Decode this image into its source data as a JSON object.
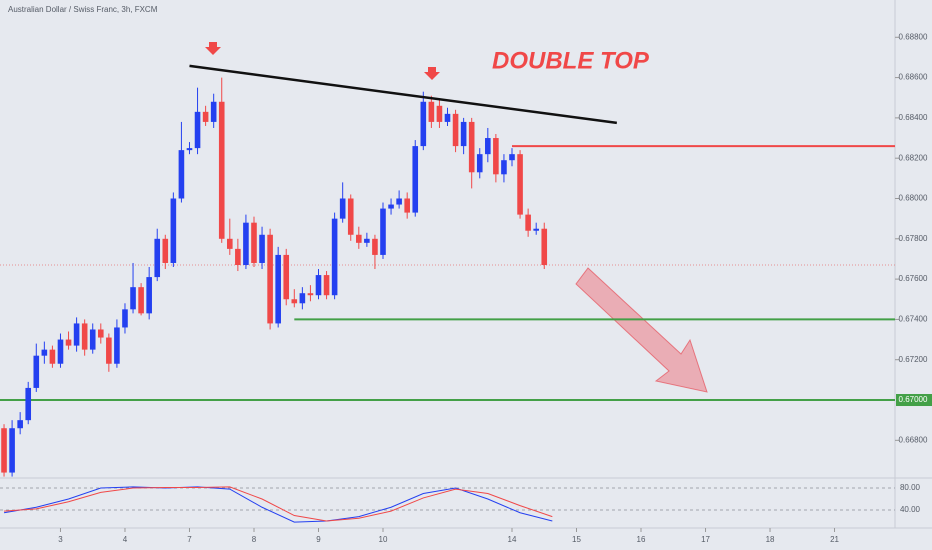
{
  "chart_data": [
    {
      "type": "candlestick",
      "subtitle": "Australian Dollar / Swiss Franc, 3h, FXCM",
      "annotation": "DOUBLE TOP",
      "up_color": "#2440f0",
      "down_color": "#f04848",
      "grid": false,
      "x": [
        0,
        1,
        2,
        3,
        4,
        5,
        6,
        7,
        8,
        9,
        10,
        11,
        12,
        13,
        14,
        15,
        16,
        17,
        18,
        19,
        20,
        21,
        22,
        23,
        24,
        25,
        26,
        27,
        28,
        29,
        30,
        31,
        32,
        33,
        34,
        35,
        36,
        37,
        38,
        39,
        40,
        41,
        42,
        43,
        44,
        45,
        46,
        47,
        48,
        49,
        50,
        51,
        52,
        53,
        54,
        55,
        56,
        57,
        58,
        59,
        60,
        61,
        62,
        63,
        64,
        65,
        66,
        67
      ],
      "open": [
        0.6686,
        0.6664,
        0.6686,
        0.669,
        0.6706,
        0.6722,
        0.6725,
        0.6718,
        0.673,
        0.6727,
        0.6738,
        0.6725,
        0.6735,
        0.6731,
        0.6718,
        0.6736,
        0.6745,
        0.6756,
        0.6743,
        0.6761,
        0.678,
        0.6768,
        0.68,
        0.6824,
        0.6825,
        0.6843,
        0.6838,
        0.6848,
        0.678,
        0.6775,
        0.6767,
        0.6788,
        0.6768,
        0.6782,
        0.6738,
        0.6772,
        0.675,
        0.6748,
        0.6753,
        0.6752,
        0.6762,
        0.6752,
        0.679,
        0.68,
        0.6782,
        0.6778,
        0.678,
        0.6772,
        0.6795,
        0.6797,
        0.68,
        0.6793,
        0.6826,
        0.6848,
        0.6846,
        0.6838,
        0.6842,
        0.6826,
        0.6838,
        0.6813,
        0.6822,
        0.683,
        0.6812,
        0.6819,
        0.6822,
        0.6792,
        0.6784,
        0.6785
      ],
      "high": [
        0.6688,
        0.669,
        0.6694,
        0.6709,
        0.6728,
        0.6729,
        0.6727,
        0.6733,
        0.6734,
        0.6741,
        0.674,
        0.6738,
        0.6738,
        0.6733,
        0.674,
        0.6748,
        0.6768,
        0.6758,
        0.6766,
        0.6785,
        0.6782,
        0.6803,
        0.6838,
        0.6828,
        0.6855,
        0.6846,
        0.6852,
        0.686,
        0.679,
        0.678,
        0.6792,
        0.6791,
        0.6786,
        0.6785,
        0.6776,
        0.6775,
        0.6755,
        0.6756,
        0.6757,
        0.6765,
        0.6764,
        0.6793,
        0.6808,
        0.6802,
        0.6786,
        0.6783,
        0.6782,
        0.6798,
        0.68,
        0.6804,
        0.6803,
        0.6829,
        0.6853,
        0.6851,
        0.6849,
        0.6845,
        0.6844,
        0.684,
        0.684,
        0.6825,
        0.6835,
        0.6832,
        0.6822,
        0.6825,
        0.6824,
        0.6795,
        0.6788,
        0.6788
      ],
      "low": [
        0.6662,
        0.6662,
        0.6683,
        0.6688,
        0.6704,
        0.6718,
        0.6716,
        0.6716,
        0.6725,
        0.6724,
        0.6722,
        0.6723,
        0.6728,
        0.6714,
        0.6716,
        0.6733,
        0.6743,
        0.6742,
        0.674,
        0.6759,
        0.6765,
        0.6766,
        0.6798,
        0.6822,
        0.6822,
        0.6836,
        0.6835,
        0.6778,
        0.6772,
        0.6764,
        0.6765,
        0.6766,
        0.6765,
        0.6735,
        0.6736,
        0.6747,
        0.6746,
        0.6745,
        0.6749,
        0.675,
        0.675,
        0.675,
        0.6788,
        0.6779,
        0.6775,
        0.6776,
        0.6765,
        0.677,
        0.6792,
        0.6795,
        0.679,
        0.6791,
        0.6824,
        0.6835,
        0.6835,
        0.6836,
        0.6823,
        0.6822,
        0.6805,
        0.681,
        0.6818,
        0.6808,
        0.6808,
        0.6816,
        0.679,
        0.6781,
        0.6782,
        0.6765
      ],
      "close": [
        0.6664,
        0.6686,
        0.669,
        0.6706,
        0.6722,
        0.6725,
        0.6718,
        0.673,
        0.6727,
        0.6738,
        0.6725,
        0.6735,
        0.6731,
        0.6718,
        0.6736,
        0.6745,
        0.6756,
        0.6743,
        0.6761,
        0.678,
        0.6768,
        0.68,
        0.6824,
        0.6825,
        0.6843,
        0.6838,
        0.6848,
        0.678,
        0.6775,
        0.6767,
        0.6788,
        0.6768,
        0.6782,
        0.6738,
        0.6772,
        0.675,
        0.6748,
        0.6753,
        0.6752,
        0.6762,
        0.6752,
        0.679,
        0.68,
        0.6782,
        0.6778,
        0.678,
        0.6772,
        0.6795,
        0.6797,
        0.68,
        0.6793,
        0.6826,
        0.6848,
        0.6838,
        0.6838,
        0.6842,
        0.6826,
        0.6838,
        0.6813,
        0.6822,
        0.683,
        0.6812,
        0.6819,
        0.6822,
        0.6792,
        0.6784,
        0.6785,
        0.6767
      ],
      "xlim": [
        -0.5,
        110.5
      ],
      "xticks": [
        {
          "value": 7,
          "label": "3"
        },
        {
          "value": 15,
          "label": "4"
        },
        {
          "value": 23,
          "label": "7"
        },
        {
          "value": 31,
          "label": "8"
        },
        {
          "value": 39,
          "label": "9"
        },
        {
          "value": 47,
          "label": "10"
        },
        {
          "value": 63,
          "label": "14"
        },
        {
          "value": 71,
          "label": "15"
        },
        {
          "value": 79,
          "label": "16"
        },
        {
          "value": 87,
          "label": "17"
        },
        {
          "value": 95,
          "label": "18"
        },
        {
          "value": 103,
          "label": "21"
        }
      ],
      "ylim": [
        0.66613,
        0.68985
      ],
      "yticks": [
        {
          "value": 0.688,
          "label": "0.68800"
        },
        {
          "value": 0.686,
          "label": "0.68600"
        },
        {
          "value": 0.684,
          "label": "0.68400"
        },
        {
          "value": 0.682,
          "label": "0.68200"
        },
        {
          "value": 0.68,
          "label": "0.68000"
        },
        {
          "value": 0.678,
          "label": "0.67800"
        },
        {
          "value": 0.676,
          "label": "0.67600"
        },
        {
          "value": 0.674,
          "label": "0.67400"
        },
        {
          "value": 0.672,
          "label": "0.67200"
        },
        {
          "value": 0.668,
          "label": "0.66800"
        }
      ],
      "hlines": [
        {
          "value": 0.6826,
          "x_start": 63,
          "color": "#f04848"
        },
        {
          "value": 0.674,
          "x_start": 36,
          "color": "#43a047"
        },
        {
          "value": 0.67,
          "x_start": -0.5,
          "color": "#43a047",
          "label": "0.67000"
        }
      ],
      "trendline": {
        "x": [
          23,
          76
        ],
        "y": [
          0.68658,
          0.68375
        ],
        "color": "#111111"
      }
    },
    {
      "type": "line",
      "ylim": [
        7.3,
        98.2
      ],
      "yticks": [
        {
          "value": 80,
          "label": "80.00"
        },
        {
          "value": 40,
          "label": "40.00"
        }
      ],
      "x": [
        0,
        4,
        8,
        12,
        16,
        20,
        24,
        28,
        32,
        36,
        40,
        44,
        48,
        52,
        56,
        60,
        64,
        68
      ],
      "series": [
        {
          "color": "#2440f0",
          "values": [
            35,
            45,
            60,
            80,
            82,
            80,
            82,
            78,
            45,
            18,
            20,
            28,
            45,
            70,
            80,
            60,
            35,
            20
          ]
        },
        {
          "color": "#f04848",
          "values": [
            38,
            42,
            55,
            72,
            80,
            81,
            81,
            82,
            60,
            30,
            20,
            25,
            38,
            62,
            78,
            70,
            48,
            28
          ]
        }
      ]
    }
  ]
}
